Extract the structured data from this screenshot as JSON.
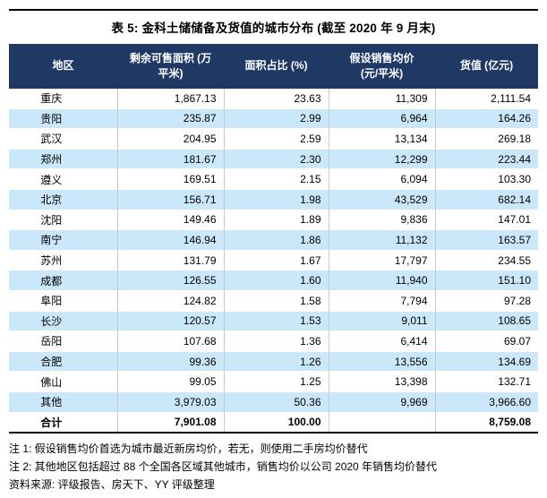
{
  "title": "表 5: 金科土储储备及货值的城市分布 (截至 2020 年 9 月末)",
  "colors": {
    "header_bg": "#1F3864",
    "header_text": "#FFFFFF",
    "band_bg": "#CBE7FA",
    "rule": "#000000"
  },
  "table": {
    "columns": [
      "地区",
      "剩余可售面积 (万\n平米)",
      "面积占比 (%)",
      "假设销售均价\n(元/平米)",
      "货值 (亿元)"
    ],
    "rows": [
      {
        "region": "重庆",
        "area": "1,867.13",
        "share": "23.63",
        "price": "11,309",
        "value": "2,111.54"
      },
      {
        "region": "贵阳",
        "area": "235.87",
        "share": "2.99",
        "price": "6,964",
        "value": "164.26"
      },
      {
        "region": "武汉",
        "area": "204.95",
        "share": "2.59",
        "price": "13,134",
        "value": "269.18"
      },
      {
        "region": "郑州",
        "area": "181.67",
        "share": "2.30",
        "price": "12,299",
        "value": "223.44"
      },
      {
        "region": "遵义",
        "area": "169.51",
        "share": "2.15",
        "price": "6,094",
        "value": "103.30"
      },
      {
        "region": "北京",
        "area": "156.71",
        "share": "1.98",
        "price": "43,529",
        "value": "682.14"
      },
      {
        "region": "沈阳",
        "area": "149.46",
        "share": "1.89",
        "price": "9,836",
        "value": "147.01"
      },
      {
        "region": "南宁",
        "area": "146.94",
        "share": "1.86",
        "price": "11,132",
        "value": "163.57"
      },
      {
        "region": "苏州",
        "area": "131.79",
        "share": "1.67",
        "price": "17,797",
        "value": "234.55"
      },
      {
        "region": "成都",
        "area": "126.55",
        "share": "1.60",
        "price": "11,940",
        "value": "151.10"
      },
      {
        "region": "阜阳",
        "area": "124.82",
        "share": "1.58",
        "price": "7,794",
        "value": "97.28"
      },
      {
        "region": "长沙",
        "area": "120.57",
        "share": "1.53",
        "price": "9,011",
        "value": "108.65"
      },
      {
        "region": "岳阳",
        "area": "107.68",
        "share": "1.36",
        "price": "6,414",
        "value": "69.07"
      },
      {
        "region": "合肥",
        "area": "99.36",
        "share": "1.26",
        "price": "13,556",
        "value": "134.69"
      },
      {
        "region": "佛山",
        "area": "99.05",
        "share": "1.25",
        "price": "13,398",
        "value": "132.71"
      },
      {
        "region": "其他",
        "area": "3,979.03",
        "share": "50.36",
        "price": "9,969",
        "value": "3,966.60"
      },
      {
        "region": "合计",
        "area": "7,901.08",
        "share": "100.00",
        "price": "",
        "value": "8,759.08"
      }
    ],
    "total_row_label": "合计"
  },
  "notes": [
    "注 1: 假设销售均价首选为城市最近新房均价，若无，则使用二手房均价替代",
    "注 2: 其他地区包括超过 88 个全国各区域其他城市，销售均价以公司 2020 年销售均价替代",
    "资料来源: 评级报告、房天下、YY 评级整理"
  ]
}
